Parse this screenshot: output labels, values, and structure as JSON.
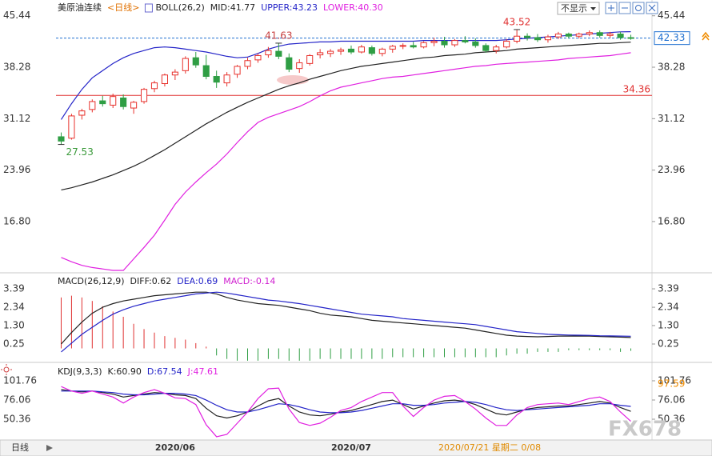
{
  "toolbar": {
    "button": "不显示"
  },
  "footer": {
    "period": "日线",
    "cursor_time": "2020/07/21 星期二 0/08"
  },
  "watermark": "FX678",
  "chart_data": [
    {
      "type": "candlestick",
      "title": "美原油连续",
      "period": "<日线>",
      "indicator": "BOLL(26,2)",
      "categories": [
        null,
        null,
        null,
        null,
        null,
        null,
        null,
        null,
        null,
        null,
        null,
        "2020/06",
        null,
        null,
        null,
        null,
        null,
        null,
        null,
        null,
        null,
        null,
        null,
        null,
        null,
        null,
        null,
        null,
        "2020/07",
        null,
        null,
        null,
        null,
        null,
        null,
        null,
        null,
        null,
        null,
        null,
        null,
        null,
        null,
        null,
        null,
        null,
        null,
        null,
        null,
        null,
        null,
        null,
        null,
        null,
        null,
        null
      ],
      "ohlc": [
        [
          28.6,
          29.2,
          27.53,
          28.0
        ],
        [
          28.4,
          31.8,
          28.2,
          31.5
        ],
        [
          31.6,
          32.5,
          31.0,
          32.2
        ],
        [
          32.4,
          33.8,
          32.0,
          33.5
        ],
        [
          33.6,
          34.3,
          32.8,
          33.2
        ],
        [
          33.0,
          34.6,
          32.6,
          34.2
        ],
        [
          34.0,
          34.5,
          32.4,
          32.8
        ],
        [
          32.6,
          33.6,
          31.8,
          33.4
        ],
        [
          33.5,
          35.4,
          33.2,
          35.2
        ],
        [
          35.3,
          36.4,
          34.8,
          36.1
        ],
        [
          36.0,
          37.4,
          35.6,
          37.2
        ],
        [
          37.2,
          38.0,
          36.5,
          37.6
        ],
        [
          37.8,
          39.8,
          37.4,
          39.5
        ],
        [
          39.6,
          40.4,
          38.2,
          38.6
        ],
        [
          38.5,
          40.0,
          36.6,
          37.0
        ],
        [
          37.0,
          37.8,
          35.4,
          36.2
        ],
        [
          36.1,
          37.6,
          35.6,
          37.2
        ],
        [
          37.3,
          38.6,
          36.8,
          38.4
        ],
        [
          38.4,
          39.6,
          38.0,
          39.2
        ],
        [
          39.3,
          40.2,
          38.9,
          39.9
        ],
        [
          40.0,
          41.1,
          39.6,
          40.6
        ],
        [
          40.5,
          41.63,
          39.4,
          39.8
        ],
        [
          39.6,
          40.2,
          37.6,
          38.0
        ],
        [
          38.1,
          39.4,
          37.5,
          38.9
        ],
        [
          38.8,
          40.1,
          38.5,
          39.9
        ],
        [
          40.0,
          40.8,
          39.5,
          40.3
        ],
        [
          40.2,
          40.8,
          39.7,
          40.5
        ],
        [
          40.5,
          41.0,
          40.0,
          40.7
        ],
        [
          40.8,
          41.3,
          40.1,
          40.4
        ],
        [
          40.4,
          41.4,
          40.2,
          41.1
        ],
        [
          41.0,
          41.3,
          39.9,
          40.2
        ],
        [
          40.2,
          41.0,
          39.8,
          40.8
        ],
        [
          40.8,
          41.4,
          40.3,
          41.2
        ],
        [
          41.2,
          41.6,
          40.8,
          41.3
        ],
        [
          41.3,
          41.8,
          40.9,
          41.1
        ],
        [
          41.1,
          41.9,
          40.9,
          41.7
        ],
        [
          41.7,
          42.4,
          41.2,
          41.9
        ],
        [
          41.9,
          42.5,
          41.0,
          41.4
        ],
        [
          41.4,
          42.2,
          41.1,
          42.0
        ],
        [
          42.0,
          42.6,
          41.6,
          41.8
        ],
        [
          41.8,
          42.3,
          41.0,
          41.3
        ],
        [
          41.3,
          41.6,
          40.3,
          40.6
        ],
        [
          40.6,
          41.4,
          40.2,
          41.1
        ],
        [
          41.1,
          42.2,
          40.9,
          41.9
        ],
        [
          41.9,
          43.52,
          41.6,
          42.6
        ],
        [
          42.6,
          43.0,
          42.0,
          42.4
        ],
        [
          42.4,
          42.9,
          41.8,
          42.1
        ],
        [
          42.1,
          42.8,
          41.7,
          42.5
        ],
        [
          42.5,
          43.2,
          42.2,
          42.9
        ],
        [
          42.9,
          43.1,
          42.3,
          42.6
        ],
        [
          42.6,
          43.1,
          42.3,
          42.9
        ],
        [
          42.9,
          43.4,
          42.6,
          43.1
        ],
        [
          43.1,
          43.4,
          42.4,
          42.7
        ],
        [
          42.7,
          43.2,
          42.4,
          42.9
        ],
        [
          42.9,
          43.2,
          42.1,
          42.4
        ],
        [
          42.4,
          42.8,
          42.1,
          42.33
        ]
      ],
      "up_color": "#e8322d",
      "down_color": "#2f9e44",
      "series": [
        {
          "name": "MID:41.77",
          "color": "#222222",
          "values": [
            21.2,
            21.5,
            21.9,
            22.3,
            22.8,
            23.3,
            23.9,
            24.5,
            25.2,
            26.0,
            26.8,
            27.7,
            28.6,
            29.5,
            30.4,
            31.2,
            32.0,
            32.7,
            33.4,
            34.0,
            34.6,
            35.2,
            35.7,
            36.1,
            36.6,
            37.0,
            37.4,
            37.8,
            38.1,
            38.4,
            38.6,
            38.8,
            39.0,
            39.2,
            39.4,
            39.6,
            39.7,
            39.9,
            40.0,
            40.1,
            40.3,
            40.4,
            40.5,
            40.6,
            40.8,
            40.9,
            41.0,
            41.1,
            41.2,
            41.3,
            41.4,
            41.5,
            41.6,
            41.6,
            41.7,
            41.77
          ]
        },
        {
          "name": "UPPER:43.23",
          "color": "#2424c8",
          "values": [
            31.0,
            33.2,
            35.2,
            36.8,
            37.8,
            38.8,
            39.6,
            40.2,
            40.6,
            41.0,
            41.1,
            41.0,
            40.8,
            40.6,
            40.4,
            40.1,
            39.8,
            39.6,
            39.7,
            40.2,
            40.8,
            41.2,
            41.5,
            41.6,
            41.7,
            41.8,
            41.8,
            41.9,
            41.9,
            41.9,
            41.9,
            41.9,
            41.9,
            41.9,
            41.9,
            42.0,
            42.0,
            42.0,
            42.0,
            42.0,
            42.0,
            42.0,
            42.0,
            42.1,
            42.2,
            42.3,
            42.4,
            42.5,
            42.6,
            42.7,
            42.8,
            42.9,
            43.0,
            43.1,
            43.2,
            43.23
          ]
        },
        {
          "name": "LOWER:40.30",
          "color": "#e020e0",
          "values": [
            11.8,
            11.2,
            10.7,
            10.4,
            10.2,
            10.0,
            10.0,
            11.6,
            13.2,
            14.9,
            17.0,
            19.2,
            20.9,
            22.3,
            23.6,
            24.8,
            26.2,
            27.8,
            29.3,
            30.6,
            31.3,
            31.8,
            32.3,
            32.8,
            33.5,
            34.3,
            35.0,
            35.5,
            35.8,
            36.1,
            36.4,
            36.7,
            36.9,
            37.0,
            37.2,
            37.4,
            37.6,
            37.8,
            38.0,
            38.2,
            38.4,
            38.5,
            38.7,
            38.8,
            38.9,
            39.0,
            39.1,
            39.2,
            39.3,
            39.5,
            39.6,
            39.7,
            39.8,
            39.9,
            40.1,
            40.3
          ]
        }
      ],
      "annotations": [
        {
          "value": 27.53,
          "color": "#3a9a3a"
        },
        {
          "value": 41.63,
          "color": "#c84040"
        },
        {
          "value": 43.52,
          "color": "#e03030"
        }
      ],
      "hlines": [
        {
          "value": 34.36,
          "color": "#e03030"
        }
      ],
      "last_price": {
        "value": 42.33,
        "color": "#2070d0"
      },
      "ylim": [
        10.0,
        46.3
      ],
      "yticks": [
        45.44,
        38.28,
        31.12,
        23.96,
        {
          "value": 16.8,
          "label": "16.80"
        }
      ]
    },
    {
      "type": "macd",
      "title": "MACD(26,12,9)",
      "series": [
        {
          "name": "DIFF:0.62",
          "color": "#222222",
          "values": [
            0.25,
            0.9,
            1.5,
            2.0,
            2.34,
            2.55,
            2.7,
            2.8,
            2.9,
            3.0,
            3.05,
            3.1,
            3.15,
            3.2,
            3.2,
            3.1,
            2.9,
            2.75,
            2.65,
            2.55,
            2.5,
            2.45,
            2.35,
            2.25,
            2.15,
            2.0,
            1.9,
            1.85,
            1.8,
            1.7,
            1.6,
            1.55,
            1.5,
            1.45,
            1.4,
            1.35,
            1.3,
            1.25,
            1.2,
            1.15,
            1.05,
            0.95,
            0.85,
            0.75,
            0.7,
            0.68,
            0.66,
            0.68,
            0.7,
            0.7,
            0.7,
            0.7,
            0.68,
            0.66,
            0.64,
            0.62
          ]
        },
        {
          "name": "DEA:0.69",
          "color": "#2424c8",
          "values": [
            -0.2,
            0.3,
            0.8,
            1.2,
            1.6,
            1.95,
            2.2,
            2.4,
            2.55,
            2.7,
            2.8,
            2.9,
            3.0,
            3.1,
            3.15,
            3.2,
            3.15,
            3.05,
            2.95,
            2.85,
            2.75,
            2.7,
            2.62,
            2.55,
            2.45,
            2.35,
            2.25,
            2.15,
            2.05,
            1.95,
            1.9,
            1.85,
            1.8,
            1.7,
            1.65,
            1.6,
            1.55,
            1.5,
            1.45,
            1.4,
            1.35,
            1.25,
            1.15,
            1.05,
            0.95,
            0.9,
            0.85,
            0.8,
            0.78,
            0.76,
            0.75,
            0.74,
            0.72,
            0.71,
            0.7,
            0.69
          ]
        }
      ],
      "bars": {
        "name": "MACD:-0.14",
        "color": "#d020d0",
        "up_color": "#e03030",
        "down_color": "#2f9e44",
        "values": [
          2.9,
          3.0,
          2.9,
          2.7,
          2.4,
          2.1,
          1.8,
          1.4,
          1.1,
          0.9,
          0.7,
          0.6,
          0.5,
          0.3,
          0.1,
          -0.4,
          -0.6,
          -0.7,
          -0.7,
          -0.7,
          -0.6,
          -0.6,
          -0.7,
          -0.7,
          -0.7,
          -0.6,
          -0.6,
          -0.6,
          -0.6,
          -0.6,
          -0.6,
          -0.6,
          -0.5,
          -0.5,
          -0.5,
          -0.5,
          -0.5,
          -0.5,
          -0.5,
          -0.5,
          -0.5,
          -0.5,
          -0.5,
          -0.4,
          -0.3,
          -0.3,
          -0.2,
          -0.2,
          -0.2,
          -0.1,
          -0.1,
          -0.1,
          -0.1,
          -0.1,
          -0.2,
          -0.14
        ]
      },
      "ylim": [
        -0.66,
        4.12
      ],
      "yticks": [
        3.39,
        2.34,
        {
          "value": 1.3,
          "label": "1.30"
        },
        0.25
      ]
    },
    {
      "type": "kdj",
      "title": "KDJ(9,3,3)",
      "series": [
        {
          "name": "K:60.90",
          "color": "#222222",
          "values": [
            90,
            88,
            87,
            88,
            86,
            84,
            80,
            82,
            84,
            86,
            85,
            83,
            82,
            78,
            65,
            55,
            52,
            55,
            60,
            68,
            75,
            78,
            68,
            60,
            56,
            55,
            57,
            60,
            62,
            66,
            70,
            74,
            76,
            70,
            64,
            68,
            72,
            75,
            76,
            74,
            70,
            64,
            58,
            56,
            60,
            64,
            66,
            67,
            68,
            68,
            70,
            72,
            74,
            72,
            66,
            60.9
          ]
        },
        {
          "name": "D:67.54",
          "color": "#2424c8",
          "values": [
            88,
            88,
            88,
            88,
            87,
            86,
            84,
            83,
            83,
            84,
            85,
            85,
            84,
            82,
            76,
            69,
            63,
            60,
            60,
            63,
            67,
            71,
            70,
            67,
            63,
            60,
            59,
            59,
            60,
            62,
            65,
            68,
            71,
            71,
            69,
            69,
            70,
            72,
            73,
            74,
            73,
            70,
            66,
            63,
            62,
            63,
            64,
            65,
            66,
            67,
            68,
            69,
            71,
            71,
            69,
            67.54
          ]
        },
        {
          "name": "J:47.61",
          "color": "#e020e0",
          "values": [
            94,
            88,
            85,
            88,
            84,
            80,
            72,
            80,
            86,
            90,
            85,
            79,
            78,
            70,
            43,
            27,
            30,
            45,
            60,
            78,
            91,
            92,
            64,
            46,
            42,
            45,
            53,
            62,
            66,
            74,
            80,
            86,
            86,
            68,
            54,
            66,
            76,
            81,
            82,
            74,
            64,
            52,
            42,
            42,
            56,
            66,
            70,
            71,
            72,
            70,
            74,
            78,
            80,
            74,
            60,
            47.61
          ]
        }
      ],
      "marker": {
        "value": 97.59,
        "color": "#f08c00"
      },
      "ylim": [
        24.7,
        121.0
      ],
      "yticks": [
        101.76,
        76.06,
        50.36
      ]
    }
  ]
}
